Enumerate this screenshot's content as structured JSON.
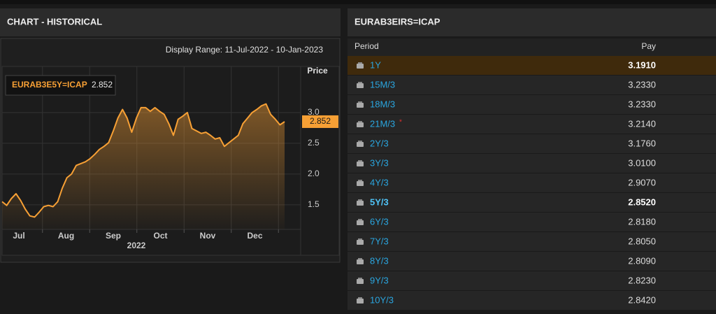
{
  "left_panel": {
    "title": "CHART - HISTORICAL"
  },
  "chart_data": {
    "type": "line",
    "subtitle": "Display Range: 11-Jul-2022 - 10-Jan-2023",
    "y_label": "Price",
    "x_labels": [
      "Jul",
      "Aug",
      "Sep",
      "Oct",
      "Nov",
      "Dec"
    ],
    "x_year": "2022",
    "series": [
      {
        "name": "EURAB3E5Y=ICAP",
        "color": "#f7a035",
        "values": [
          1.55,
          1.49,
          1.6,
          1.68,
          1.57,
          1.43,
          1.32,
          1.3,
          1.38,
          1.47,
          1.49,
          1.47,
          1.55,
          1.77,
          1.94,
          2.0,
          2.14,
          2.17,
          2.2,
          2.25,
          2.32,
          2.4,
          2.45,
          2.51,
          2.7,
          2.91,
          3.05,
          2.91,
          2.68,
          2.91,
          3.08,
          3.08,
          3.02,
          3.08,
          3.02,
          2.97,
          2.82,
          2.63,
          2.89,
          2.94,
          3.0,
          2.74,
          2.7,
          2.66,
          2.68,
          2.63,
          2.57,
          2.59,
          2.45,
          2.51,
          2.57,
          2.63,
          2.82,
          2.91,
          3.0,
          3.05,
          3.11,
          3.14,
          2.97,
          2.89,
          2.8,
          2.852
        ]
      }
    ],
    "last_value": 2.852,
    "ylim": [
      1.1,
      3.75
    ],
    "yticks": [
      {
        "value": 1.5,
        "label": "1.5"
      },
      {
        "value": 2,
        "label": "2.0"
      },
      2.5,
      {
        "value": 3,
        "label": "3.0"
      }
    ],
    "grid": true
  },
  "right_panel": {
    "title": "EURAB3EIRS=ICAP",
    "columns": [
      "Period",
      "Pay"
    ],
    "rows": [
      {
        "period": "1Y",
        "pay": "3.1910",
        "highlight": true
      },
      {
        "period": "15M/3",
        "pay": "3.2330"
      },
      {
        "period": "18M/3",
        "pay": "3.2330"
      },
      {
        "period": "21M/3",
        "pay": "3.2140",
        "flag": "*"
      },
      {
        "period": "2Y/3",
        "pay": "3.1760"
      },
      {
        "period": "3Y/3",
        "pay": "3.0100"
      },
      {
        "period": "4Y/3",
        "pay": "2.9070"
      },
      {
        "period": "5Y/3",
        "pay": "2.8520",
        "bold": true
      },
      {
        "period": "6Y/3",
        "pay": "2.8180"
      },
      {
        "period": "7Y/3",
        "pay": "2.8050"
      },
      {
        "period": "8Y/3",
        "pay": "2.8090"
      },
      {
        "period": "9Y/3",
        "pay": "2.8230"
      },
      {
        "period": "10Y/3",
        "pay": "2.8420"
      }
    ]
  }
}
